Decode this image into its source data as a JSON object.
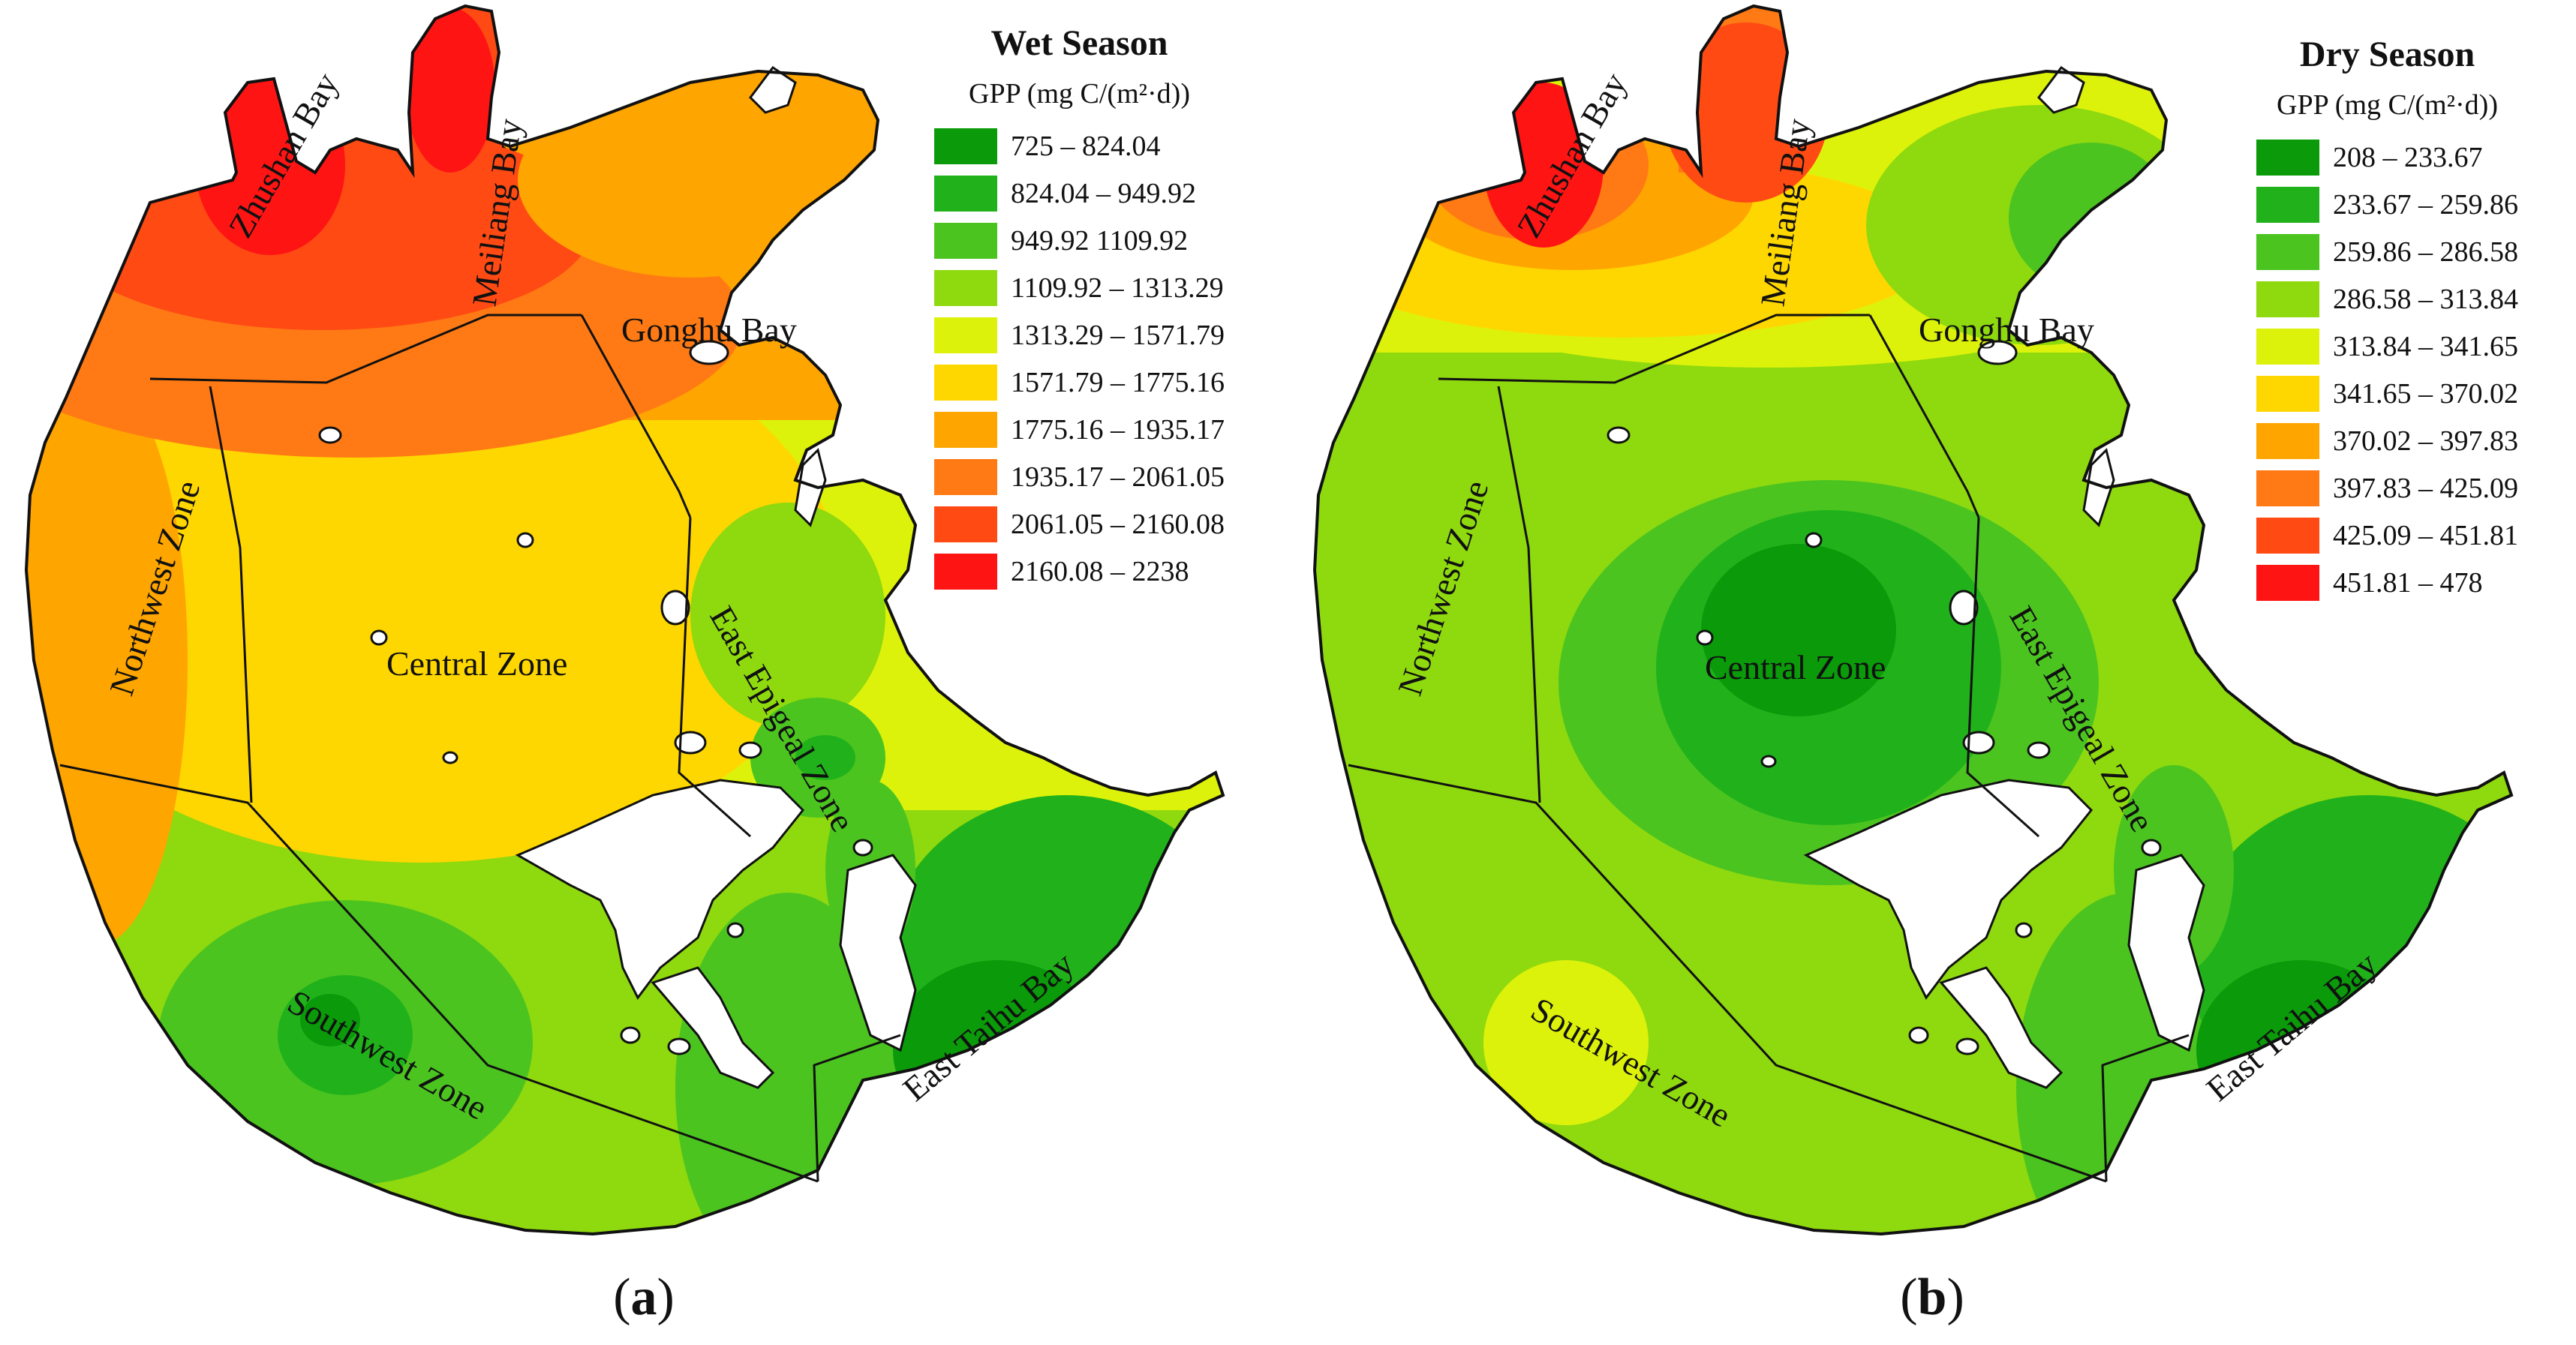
{
  "panels": {
    "a": {
      "caption": "a",
      "legend_title": "Wet Season",
      "legend_unit": "GPP (mg C/(m²·d))",
      "legend": [
        {
          "label": "725 – 824.04",
          "color": "#0a9a0a"
        },
        {
          "label": "824.04 – 949.92",
          "color": "#21b21b"
        },
        {
          "label": "949.92 1109.92",
          "color": "#4cc420"
        },
        {
          "label": "1109.92 – 1313.29",
          "color": "#8fd90f"
        },
        {
          "label": "1313.29 – 1571.79",
          "color": "#ddf20a"
        },
        {
          "label": "1571.79 – 1775.16",
          "color": "#ffd700"
        },
        {
          "label": "1775.16 – 1935.17",
          "color": "#ffa500"
        },
        {
          "label": "1935.17 – 2061.05",
          "color": "#ff7a14"
        },
        {
          "label": "2061.05 – 2160.08",
          "color": "#ff4a14"
        },
        {
          "label": "2160.08 – 2238",
          "color": "#ff1414"
        }
      ],
      "zones": {
        "zhushan": "Zhushan Bay",
        "meiliang": "Meiliang Bay",
        "gonghu": "Gonghu Bay",
        "northwest": "Northwest Zone",
        "central": "Central Zone",
        "east_epigeal": "East Epigeal Zone",
        "southwest": "Southwest Zone",
        "east_taihu": "East Taihu Bay"
      }
    },
    "b": {
      "caption": "b",
      "legend_title": "Dry Season",
      "legend_unit": "GPP (mg C/(m²·d))",
      "legend": [
        {
          "label": "208 – 233.67",
          "color": "#0a9a0a"
        },
        {
          "label": "233.67 – 259.86",
          "color": "#21b21b"
        },
        {
          "label": "259.86 – 286.58",
          "color": "#4cc420"
        },
        {
          "label": "286.58 – 313.84",
          "color": "#8fd90f"
        },
        {
          "label": "313.84 – 341.65",
          "color": "#ddf20a"
        },
        {
          "label": "341.65 – 370.02",
          "color": "#ffd700"
        },
        {
          "label": "370.02 – 397.83",
          "color": "#ffa500"
        },
        {
          "label": "397.83 – 425.09",
          "color": "#ff7a14"
        },
        {
          "label": "425.09 – 451.81",
          "color": "#ff4a14"
        },
        {
          "label": "451.81 – 478",
          "color": "#ff1414"
        }
      ],
      "zones": {
        "zhushan": "Zhushan Bay",
        "meiliang": "Meiliang Bay",
        "gonghu": "Gonghu Bay",
        "northwest": "Northwest Zone",
        "central": "Central Zone",
        "east_epigeal": "East Epigeal Zone",
        "southwest": "Southwest Zone",
        "east_taihu": "East Taihu Bay"
      }
    }
  }
}
